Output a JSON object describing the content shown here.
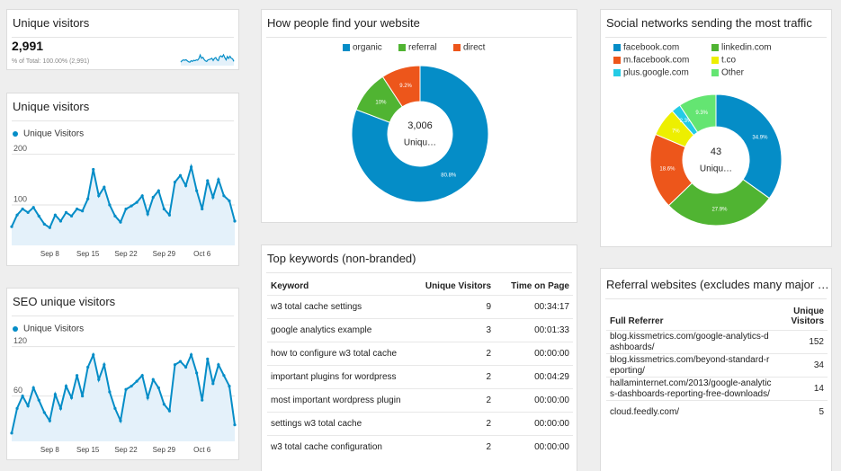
{
  "scorecard": {
    "title": "Unique visitors",
    "value": "2,991",
    "subtitle": "% of Total: 100.00% (2,991)"
  },
  "chart_data": [
    {
      "type": "line",
      "color": "#058dc7",
      "values": [
        57,
        80,
        92,
        85,
        95,
        78,
        62,
        55,
        80,
        68,
        85,
        78,
        92,
        88,
        112,
        170,
        118,
        135,
        100,
        78,
        66,
        92,
        98,
        105,
        118,
        82,
        115,
        128,
        92,
        80,
        145,
        158,
        138,
        175,
        128,
        92,
        148,
        115,
        150,
        118,
        108,
        68
      ],
      "ylim": [
        0,
        260
      ]
    },
    {
      "type": "line",
      "title": "Unique visitors",
      "categories": [
        null,
        null,
        null,
        null,
        null,
        null,
        null,
        "Sep 8",
        null,
        null,
        null,
        null,
        null,
        null,
        "Sep 15",
        null,
        null,
        null,
        null,
        null,
        null,
        "Sep 22",
        null,
        null,
        null,
        null,
        null,
        null,
        "Sep 29",
        null,
        null,
        null,
        null,
        null,
        null,
        "Oct 6",
        null,
        null,
        null,
        null,
        null,
        null
      ],
      "series": [
        {
          "name": "Unique Visitors",
          "color": "#058dc7",
          "values": [
            57,
            80,
            92,
            85,
            95,
            78,
            62,
            55,
            80,
            68,
            85,
            78,
            92,
            88,
            112,
            170,
            118,
            135,
            100,
            78,
            66,
            92,
            98,
            105,
            118,
            82,
            115,
            128,
            92,
            80,
            145,
            158,
            138,
            175,
            128,
            92,
            148,
            115,
            150,
            118,
            108,
            68
          ]
        }
      ],
      "ylim": [
        20,
        210
      ],
      "yticks": [
        100,
        200
      ],
      "grid": true
    },
    {
      "type": "line",
      "title": "SEO unique visitors",
      "categories": [
        null,
        null,
        null,
        null,
        null,
        null,
        null,
        "Sep 8",
        null,
        null,
        null,
        null,
        null,
        null,
        "Sep 15",
        null,
        null,
        null,
        null,
        null,
        null,
        "Sep 22",
        null,
        null,
        null,
        null,
        null,
        null,
        "Sep 29",
        null,
        null,
        null,
        null,
        null,
        null,
        "Oct 6",
        null,
        null,
        null,
        null,
        null,
        null
      ],
      "series": [
        {
          "name": "Unique Visitors",
          "color": "#058dc7",
          "values": [
            15,
            45,
            60,
            48,
            70,
            55,
            40,
            30,
            62,
            45,
            72,
            58,
            85,
            60,
            95,
            110,
            80,
            98,
            65,
            45,
            30,
            68,
            72,
            78,
            85,
            58,
            80,
            70,
            50,
            42,
            98,
            102,
            95,
            110,
            88,
            55,
            105,
            75,
            98,
            85,
            72,
            25
          ]
        }
      ],
      "ylim": [
        5,
        125
      ],
      "yticks": [
        60,
        120
      ],
      "grid": true
    },
    {
      "type": "pie",
      "title": "How people find your website",
      "categories": [
        "organic",
        "referral",
        "direct"
      ],
      "values": [
        80.8,
        10,
        9.2
      ],
      "value_labels": [
        "80.8%",
        "10%",
        "9.2%"
      ],
      "colors": [
        "#058dc7",
        "#50b432",
        "#ed561b"
      ],
      "center_value": "3,006",
      "center_label": "Uniqu…"
    },
    {
      "type": "pie",
      "title": "Social networks sending the most traffic",
      "categories": [
        "facebook.com",
        "linkedin.com",
        "m.facebook.com",
        "t.co",
        "plus.google.com",
        "Other"
      ],
      "values": [
        34.9,
        27.9,
        18.6,
        7,
        2.3,
        9.3
      ],
      "value_labels": [
        "34.9%",
        "27.9%",
        "18.6%",
        "7%",
        "2.3%",
        "9.3%"
      ],
      "colors": [
        "#058dc7",
        "#50b432",
        "#ed561b",
        "#edef00",
        "#24cbe5",
        "#64e572"
      ],
      "center_value": "43",
      "center_label": "Uniqu…"
    }
  ],
  "keywords_table": {
    "title": "Top keywords (non-branded)",
    "columns": [
      "Keyword",
      "Unique Visitors",
      "Time on Page"
    ],
    "rows": [
      [
        "w3 total cache settings",
        9,
        "00:34:17"
      ],
      [
        "google analytics example",
        3,
        "00:01:33"
      ],
      [
        "how to configure w3 total cache",
        2,
        "00:00:00"
      ],
      [
        "important plugins for wordpress",
        2,
        "00:04:29"
      ],
      [
        "most important wordpress plugin",
        2,
        "00:00:00"
      ],
      [
        "settings w3 total cache",
        2,
        "00:00:00"
      ],
      [
        "w3 total cache configuration",
        2,
        "00:00:00"
      ]
    ]
  },
  "referral_table": {
    "title": "Referral websites (excludes many major …",
    "columns": [
      "Full Referrer",
      "Unique Visitors"
    ],
    "rows": [
      [
        "blog.kissmetrics.com/google-analytics-dashboards/",
        152
      ],
      [
        "blog.kissmetrics.com/beyond-standard-reporting/",
        34
      ],
      [
        "hallaminternet.com/2013/google-analytics-dashboards-reporting-free-downloads/",
        14
      ],
      [
        "cloud.feedly.com/",
        5
      ]
    ]
  }
}
